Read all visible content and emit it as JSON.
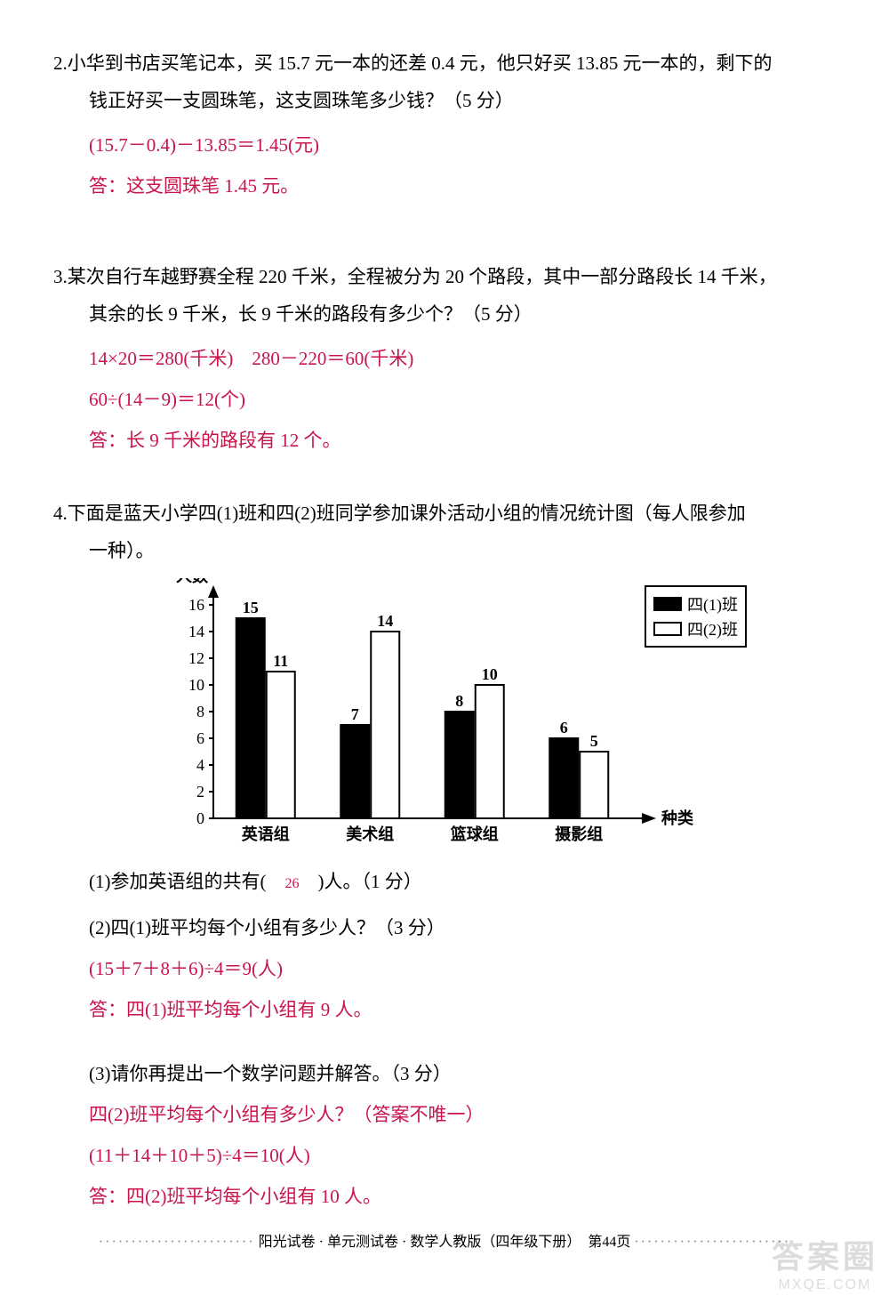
{
  "q2": {
    "number": "2.",
    "text_line1": "小华到书店买笔记本，买 15.7 元一本的还差 0.4 元，他只好买 13.85 元一本的，剩下的",
    "text_line2": "钱正好买一支圆珠笔，这支圆珠笔多少钱？（5 分）",
    "answer_calc": "(15.7－0.4)－13.85＝1.45(元)",
    "answer_text": "答：这支圆珠笔 1.45 元。"
  },
  "q3": {
    "number": "3.",
    "text_line1": "某次自行车越野赛全程 220 千米，全程被分为 20 个路段，其中一部分路段长 14 千米，",
    "text_line2": "其余的长 9 千米，长 9 千米的路段有多少个？（5 分）",
    "answer_calc1": "14×20＝280(千米)　280－220＝60(千米)",
    "answer_calc2": "60÷(14－9)＝12(个)",
    "answer_text": "答：长 9 千米的路段有 12 个。"
  },
  "q4": {
    "number": "4.",
    "text_line1": "下面是蓝天小学四(1)班和四(2)班同学参加课外活动小组的情况统计图（每人限参加",
    "text_line2": "一种）。",
    "chart": {
      "type": "bar",
      "y_axis_label": "人数",
      "x_axis_label": "种类",
      "categories": [
        "英语组",
        "美术组",
        "篮球组",
        "摄影组"
      ],
      "series": [
        {
          "name": "四(1)班",
          "values": [
            15,
            7,
            8,
            6
          ],
          "color": "#000000"
        },
        {
          "name": "四(2)班",
          "values": [
            11,
            14,
            10,
            5
          ],
          "color": "#ffffff"
        }
      ],
      "y_max": 16,
      "y_tick_step": 2,
      "y_ticks": [
        0,
        2,
        4,
        6,
        8,
        10,
        12,
        14,
        16
      ],
      "axis_color": "#000000",
      "bar_border_color": "#000000",
      "label_fontsize": 18,
      "value_label_fontsize": 18,
      "legend": {
        "items": [
          {
            "label": "四(1)班",
            "fill": "#000000"
          },
          {
            "label": "四(2)班",
            "fill": "#ffffff"
          }
        ]
      }
    },
    "sub1": {
      "text_before": "(1)参加英语组的共有(　",
      "answer": "26",
      "text_after": "　)人。（1 分）"
    },
    "sub2": {
      "text": "(2)四(1)班平均每个小组有多少人？（3 分）",
      "answer_calc": "(15＋7＋8＋6)÷4＝9(人)",
      "answer_text": "答：四(1)班平均每个小组有 9 人。"
    },
    "sub3": {
      "text": "(3)请你再提出一个数学问题并解答。（3 分）",
      "answer_q": "四(2)班平均每个小组有多少人？（答案不唯一）",
      "answer_calc": "(11＋14＋10＋5)÷4＝10(人)",
      "answer_text": "答：四(2)班平均每个小组有 10 人。"
    }
  },
  "footer": {
    "dots": "························",
    "text": "阳光试卷 · 单元测试卷 · 数学人教版（四年级下册）　第44页"
  },
  "watermark": {
    "main": "答案圈",
    "sub": "MXQE.COM"
  }
}
